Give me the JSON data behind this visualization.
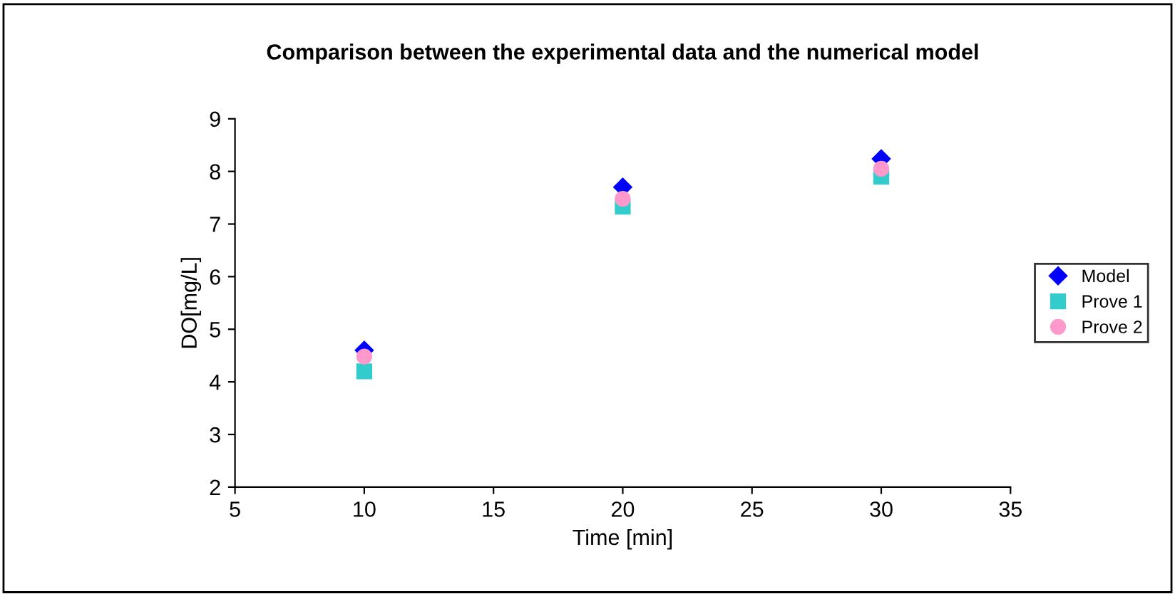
{
  "chart_data": {
    "type": "scatter",
    "title": "Comparison between the experimental data and the numerical model",
    "xlabel": "Time [min]",
    "ylabel": "DO[mg/L]",
    "series": [
      {
        "name": "Model",
        "color": "#0000ff",
        "marker": "diamond",
        "x": [
          10,
          20,
          30
        ],
        "values": [
          4.6,
          7.7,
          8.24
        ]
      },
      {
        "name": "Prove 1",
        "color": "#33cccc",
        "marker": "square",
        "x": [
          10,
          20,
          30
        ],
        "values": [
          4.2,
          7.33,
          7.9
        ]
      },
      {
        "name": "Prove 2",
        "color": "#ff99cc",
        "marker": "circle",
        "x": [
          10,
          20,
          30
        ],
        "values": [
          4.48,
          7.48,
          8.05
        ]
      }
    ],
    "xlim": [
      5,
      35
    ],
    "xticks": [
      5,
      10,
      15,
      20,
      25,
      30,
      35
    ],
    "ylim": [
      2,
      9
    ],
    "yticks": [
      2,
      3,
      4,
      5,
      6,
      7,
      8,
      9
    ],
    "grid": false,
    "legend": "right"
  }
}
